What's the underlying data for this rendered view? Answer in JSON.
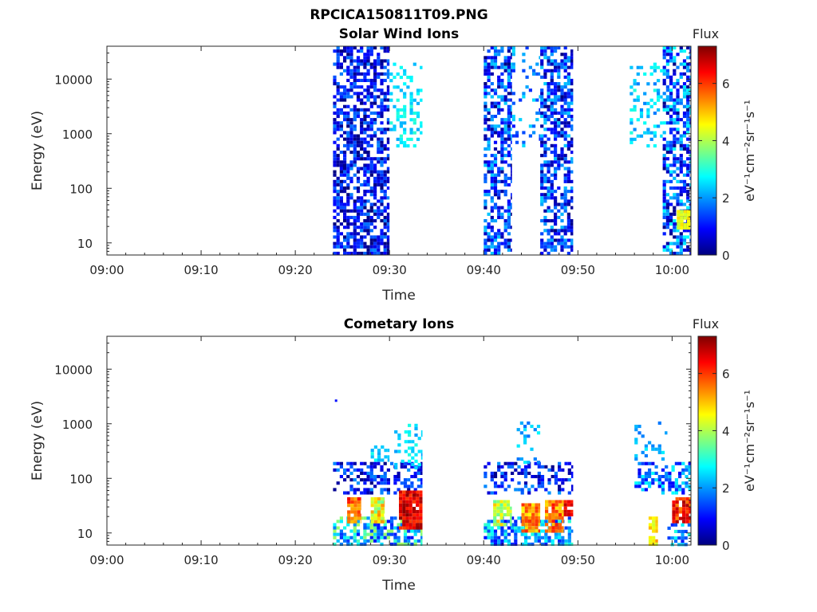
{
  "figure_title": "RPCICA150811T09.PNG",
  "colormap": [
    "#00007f",
    "#0000ff",
    "#007fff",
    "#00ffff",
    "#7fff7f",
    "#ffff00",
    "#ff7f00",
    "#ff0000",
    "#7f0000"
  ],
  "chart_data": [
    {
      "type": "heatmap",
      "title": "Solar Wind Ions",
      "xlabel": "Time",
      "ylabel": "Energy (eV)",
      "x_ticks": [
        "09:00",
        "09:10",
        "09:20",
        "09:30",
        "09:40",
        "09:50",
        "10:00"
      ],
      "xlim_minutes": [
        0,
        62
      ],
      "y_ticks": [
        "10",
        "100",
        "1000",
        "10000"
      ],
      "y_scale": "log",
      "ylim": [
        6,
        40000
      ],
      "colorbar": {
        "label": "Flux",
        "units": "eV⁻¹cm⁻²sr⁻¹s⁻¹",
        "ticks": [
          "0",
          "2",
          "4",
          "6"
        ],
        "range": [
          0,
          7.3
        ]
      },
      "data_blocks": [
        {
          "t": [
            24,
            30
          ],
          "e": [
            6,
            40000
          ],
          "level": 0.9,
          "spread": 1.0,
          "density": 0.65
        },
        {
          "t": [
            30,
            33.5
          ],
          "e": [
            600,
            20000
          ],
          "level": 2.6,
          "spread": 0.5,
          "density": 0.35
        },
        {
          "t": [
            40,
            43
          ],
          "e": [
            6,
            40000
          ],
          "level": 1.2,
          "spread": 1.2,
          "density": 0.6
        },
        {
          "t": [
            43,
            46
          ],
          "e": [
            500,
            40000
          ],
          "level": 1.8,
          "spread": 0.8,
          "density": 0.15
        },
        {
          "t": [
            46,
            49.5
          ],
          "e": [
            6,
            40000
          ],
          "level": 1.2,
          "spread": 1.2,
          "density": 0.6
        },
        {
          "t": [
            55.5,
            59
          ],
          "e": [
            600,
            20000
          ],
          "level": 2.4,
          "spread": 0.6,
          "density": 0.3
        },
        {
          "t": [
            59,
            62
          ],
          "e": [
            6,
            40000
          ],
          "level": 1.4,
          "spread": 1.4,
          "density": 0.6
        },
        {
          "t": [
            60.5,
            62
          ],
          "e": [
            18,
            40
          ],
          "level": 4.5,
          "spread": 0.4,
          "density": 0.9
        }
      ]
    },
    {
      "type": "heatmap",
      "title": "Cometary Ions",
      "xlabel": "Time",
      "ylabel": "Energy (eV)",
      "x_ticks": [
        "09:00",
        "09:10",
        "09:20",
        "09:30",
        "09:40",
        "09:50",
        "10:00"
      ],
      "xlim_minutes": [
        0,
        62
      ],
      "y_ticks": [
        "10",
        "100",
        "1000",
        "10000"
      ],
      "y_scale": "log",
      "ylim": [
        6,
        40000
      ],
      "colorbar": {
        "label": "Flux",
        "units": "eV⁻¹cm⁻²sr⁻¹s⁻¹",
        "ticks": [
          "0",
          "2",
          "4",
          "6"
        ],
        "range": [
          0,
          7.3
        ]
      },
      "data_blocks": [
        {
          "t": [
            24,
            33.5
          ],
          "e": [
            6,
            20
          ],
          "level": 2.5,
          "spread": 1.5,
          "density": 0.7
        },
        {
          "t": [
            24,
            33.5
          ],
          "e": [
            50,
            200
          ],
          "level": 1.0,
          "spread": 1.0,
          "density": 0.5
        },
        {
          "t": [
            25.5,
            27
          ],
          "e": [
            15,
            45
          ],
          "level": 5.8,
          "spread": 0.8,
          "density": 0.9
        },
        {
          "t": [
            28,
            29.5
          ],
          "e": [
            15,
            45
          ],
          "level": 4.5,
          "spread": 1.0,
          "density": 0.85
        },
        {
          "t": [
            31,
            33.5
          ],
          "e": [
            12,
            60
          ],
          "level": 6.6,
          "spread": 0.7,
          "density": 0.95
        },
        {
          "t": [
            28,
            30
          ],
          "e": [
            200,
            400
          ],
          "level": 2.5,
          "spread": 0.4,
          "density": 0.6
        },
        {
          "t": [
            30.5,
            33.5
          ],
          "e": [
            150,
            1000
          ],
          "level": 2.5,
          "spread": 0.5,
          "density": 0.3
        },
        {
          "t": [
            40,
            49.5
          ],
          "e": [
            6,
            20
          ],
          "level": 2.0,
          "spread": 1.2,
          "density": 0.6
        },
        {
          "t": [
            40,
            49.5
          ],
          "e": [
            50,
            200
          ],
          "level": 1.0,
          "spread": 1.0,
          "density": 0.45
        },
        {
          "t": [
            41,
            43
          ],
          "e": [
            15,
            40
          ],
          "level": 4.2,
          "spread": 0.8,
          "density": 0.85
        },
        {
          "t": [
            44,
            46
          ],
          "e": [
            10,
            35
          ],
          "level": 5.3,
          "spread": 0.8,
          "density": 0.9
        },
        {
          "t": [
            46.5,
            48.5
          ],
          "e": [
            10,
            40
          ],
          "level": 5.5,
          "spread": 0.8,
          "density": 0.9
        },
        {
          "t": [
            48.5,
            49.5
          ],
          "e": [
            20,
            40
          ],
          "level": 6.5,
          "spread": 0.4,
          "density": 0.8
        },
        {
          "t": [
            43.5,
            46
          ],
          "e": [
            200,
            1100
          ],
          "level": 2.2,
          "spread": 0.5,
          "density": 0.25
        },
        {
          "t": [
            56,
            62
          ],
          "e": [
            50,
            200
          ],
          "level": 1.8,
          "spread": 1.0,
          "density": 0.45
        },
        {
          "t": [
            56,
            59.5
          ],
          "e": [
            200,
            1100
          ],
          "level": 2.2,
          "spread": 0.5,
          "density": 0.2
        },
        {
          "t": [
            57.5,
            58.5
          ],
          "e": [
            6,
            20
          ],
          "level": 4.8,
          "spread": 0.6,
          "density": 0.8
        },
        {
          "t": [
            60,
            62
          ],
          "e": [
            15,
            45
          ],
          "level": 6.2,
          "spread": 0.8,
          "density": 0.9
        },
        {
          "t": [
            59.5,
            62
          ],
          "e": [
            6,
            15
          ],
          "level": 2.0,
          "spread": 1.0,
          "density": 0.5
        }
      ],
      "points": [
        {
          "t": 24.2,
          "e": 2600,
          "level": 1.0
        }
      ]
    }
  ]
}
